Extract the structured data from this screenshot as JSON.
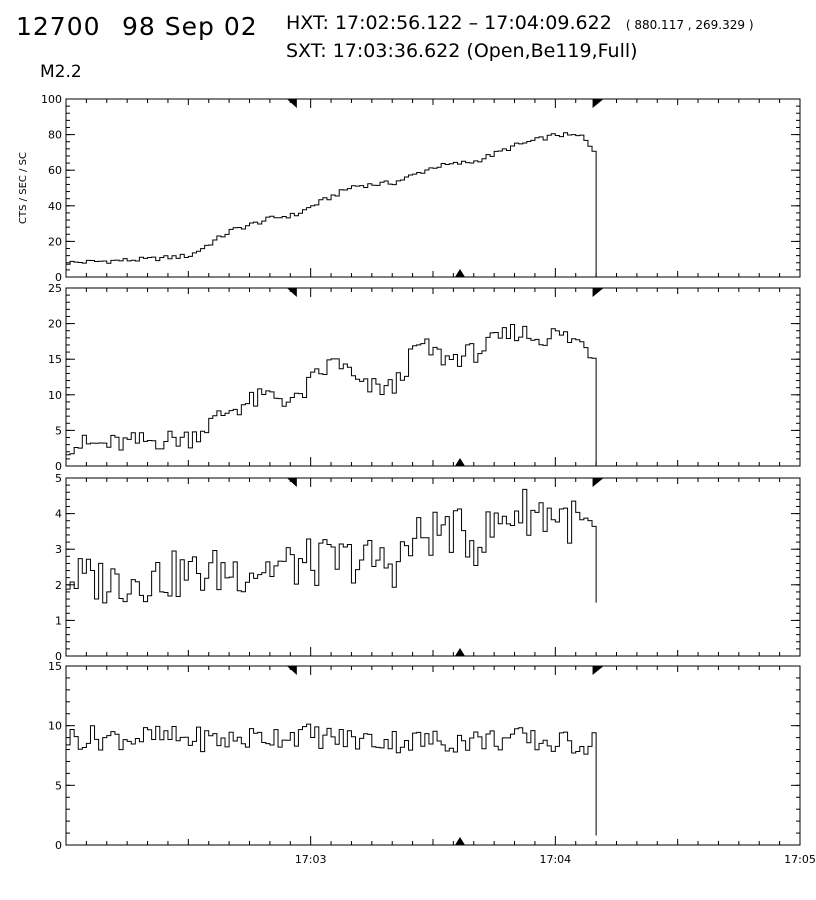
{
  "header": {
    "observation": "12700",
    "date": "98 Sep 02",
    "hxt_label": "HXT:",
    "hxt_range": "17:02:56.122 – 17:04:09.622",
    "hxt_coords": "( 880.117 , 269.329 )",
    "sxt_label": "SXT:",
    "sxt_time": "17:03:36.622",
    "sxt_params": "(Open,Be119,Full)",
    "flare_class": "M2.2"
  },
  "chart_data": [
    {
      "type": "line",
      "step": true,
      "panel": 1,
      "ylabel": "CTS / SEC / SC",
      "ylim": [
        0,
        100
      ],
      "yticks": [
        0,
        20,
        40,
        60,
        80,
        100
      ],
      "xlim": [
        "17:02:00",
        "17:05:00"
      ],
      "x": [
        "17:02:00",
        "17:02:10",
        "17:02:20",
        "17:02:30",
        "17:02:40",
        "17:02:50",
        "17:02:56",
        "17:03:00",
        "17:03:10",
        "17:03:20",
        "17:03:30",
        "17:03:40",
        "17:03:50",
        "17:04:00",
        "17:04:06",
        "17:04:10",
        "17:04:11"
      ],
      "values": [
        8,
        9,
        10,
        12,
        26,
        33,
        35,
        40,
        51,
        53,
        62,
        65,
        74,
        80,
        79,
        69,
        0
      ]
    },
    {
      "type": "line",
      "step": true,
      "panel": 2,
      "ylabel": "",
      "ylim": [
        0,
        25
      ],
      "yticks": [
        0,
        5,
        10,
        15,
        20,
        25
      ],
      "xlim": [
        "17:02:00",
        "17:05:00"
      ],
      "x": [
        "17:02:00",
        "17:02:10",
        "17:02:20",
        "17:02:30",
        "17:02:40",
        "17:02:50",
        "17:02:56",
        "17:03:00",
        "17:03:06",
        "17:03:12",
        "17:03:20",
        "17:03:26",
        "17:03:33",
        "17:03:40",
        "17:03:50",
        "17:03:55",
        "17:04:00",
        "17:04:07",
        "17:04:10",
        "17:04:11"
      ],
      "values": [
        3,
        3,
        3.5,
        4,
        8,
        10,
        9,
        12,
        15,
        11,
        11,
        17,
        15,
        16,
        19,
        18,
        18.5,
        17,
        15,
        0
      ]
    },
    {
      "type": "line",
      "step": true,
      "panel": 3,
      "ylabel": "",
      "ylim": [
        0,
        5
      ],
      "yticks": [
        0,
        1,
        2,
        3,
        4,
        5
      ],
      "xlim": [
        "17:02:00",
        "17:05:00"
      ],
      "x": [
        "17:02:00",
        "17:02:10",
        "17:02:20",
        "17:02:30",
        "17:02:40",
        "17:02:50",
        "17:03:00",
        "17:03:10",
        "17:03:20",
        "17:03:26",
        "17:03:33",
        "17:03:40",
        "17:03:50",
        "17:04:00",
        "17:04:07",
        "17:04:10",
        "17:04:11"
      ],
      "values": [
        2.2,
        2.1,
        2.2,
        2.3,
        2.4,
        2.5,
        2.6,
        2.7,
        2.6,
        3.3,
        3.6,
        3.2,
        4.1,
        4.0,
        3.6,
        3.1,
        1.5
      ]
    },
    {
      "type": "line",
      "step": true,
      "panel": 4,
      "ylabel": "",
      "ylim": [
        0,
        15
      ],
      "yticks": [
        0,
        5,
        10,
        15
      ],
      "xlim": [
        "17:02:00",
        "17:05:00"
      ],
      "xticks": [
        "17:03",
        "17:04",
        "17:05"
      ],
      "x": [
        "17:02:00",
        "17:02:20",
        "17:02:40",
        "17:02:56",
        "17:03:10",
        "17:03:30",
        "17:03:50",
        "17:04:00",
        "17:04:10",
        "17:04:11"
      ],
      "values": [
        9,
        9,
        8.8,
        9.3,
        8.8,
        8.7,
        8.9,
        8.5,
        8.6,
        0.8
      ]
    }
  ],
  "markers": {
    "hxt_start": "17:02:56.122",
    "hxt_end": "17:04:09.622",
    "sxt_time": "17:03:36.622"
  }
}
